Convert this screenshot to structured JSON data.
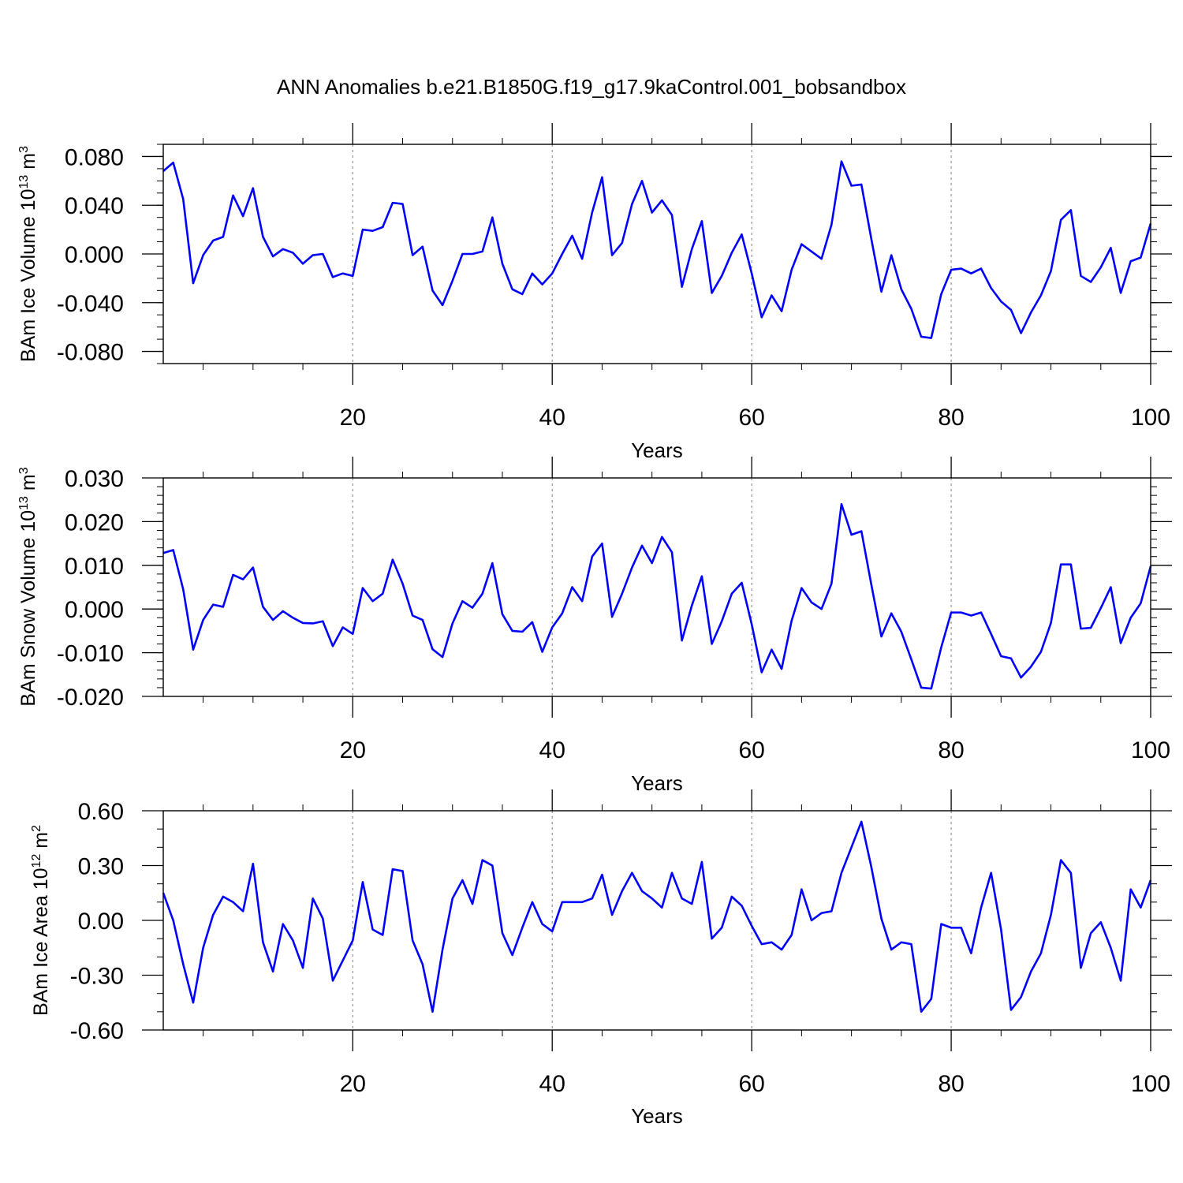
{
  "title": "ANN Anomalies b.e21.B1850G.f19_g17.9kaControl.001_bobsandbox",
  "colors": {
    "series": "#0000ff",
    "axes": "#000000",
    "grid": "#808080"
  },
  "chart_data": [
    {
      "type": "line",
      "ylabel": "BAm Ice Volume 10",
      "ylabel_exp": "13",
      "ylabel_unit": " m",
      "ylabel_unit_exp": "3",
      "xlabel": "Years",
      "xlim": [
        1,
        100
      ],
      "ylim": [
        -0.09,
        0.09
      ],
      "xticks": [
        20,
        40,
        60,
        80,
        100
      ],
      "xtick_labels": [
        "20",
        "40",
        "60",
        "80",
        "100"
      ],
      "yticks": [
        0.08,
        0.04,
        0.0,
        -0.04,
        -0.08
      ],
      "ytick_labels": [
        "0.080",
        "0.040",
        "0.000",
        "-0.040",
        "-0.080"
      ],
      "ylim_minor_step": 0.01,
      "vgrid": [
        20,
        40,
        60,
        80
      ],
      "series": [
        {
          "x_start": 1,
          "values": [
            0.068,
            0.075,
            0.045,
            -0.024,
            -0.001,
            0.011,
            0.014,
            0.048,
            0.031,
            0.054,
            0.014,
            -0.002,
            0.004,
            0.001,
            -0.008,
            -0.001,
            0.0,
            -0.019,
            -0.016,
            -0.018,
            0.02,
            0.019,
            0.022,
            0.042,
            0.041,
            -0.001,
            0.006,
            -0.03,
            -0.042,
            -0.022,
            0.0,
            0.0,
            0.002,
            0.03,
            -0.008,
            -0.029,
            -0.033,
            -0.016,
            -0.025,
            -0.016,
            0.0,
            0.015,
            -0.004,
            0.034,
            0.063,
            -0.001,
            0.009,
            0.041,
            0.06,
            0.034,
            0.044,
            0.032,
            -0.027,
            0.004,
            0.027,
            -0.032,
            -0.018,
            0.001,
            0.016,
            -0.016,
            -0.052,
            -0.034,
            -0.047,
            -0.013,
            0.008,
            0.002,
            -0.004,
            0.024,
            0.076,
            0.056,
            0.057,
            0.012,
            -0.031,
            -0.001,
            -0.029,
            -0.045,
            -0.068,
            -0.069,
            -0.033,
            -0.013,
            -0.012,
            -0.016,
            -0.012,
            -0.028,
            -0.039,
            -0.046,
            -0.065,
            -0.048,
            -0.034,
            -0.014,
            0.028,
            0.036,
            -0.018,
            -0.023,
            -0.011,
            0.005,
            -0.032,
            -0.006,
            -0.003,
            0.025
          ]
        }
      ]
    },
    {
      "type": "line",
      "ylabel": "BAm Snow Volume 10",
      "ylabel_exp": "13",
      "ylabel_unit": " m",
      "ylabel_unit_exp": "3",
      "xlabel": "Years",
      "xlim": [
        1,
        100
      ],
      "ylim": [
        -0.02,
        0.03
      ],
      "xticks": [
        20,
        40,
        60,
        80,
        100
      ],
      "xtick_labels": [
        "20",
        "40",
        "60",
        "80",
        "100"
      ],
      "yticks": [
        0.03,
        0.02,
        0.01,
        0.0,
        -0.01,
        -0.02
      ],
      "ytick_labels": [
        "0.030",
        "0.020",
        "0.010",
        "0.000",
        "-0.010",
        "-0.020"
      ],
      "ylim_minor_step": 0.002,
      "vgrid": [
        20,
        40,
        60,
        80
      ],
      "series": [
        {
          "x_start": 1,
          "values": [
            0.0128,
            0.0135,
            0.0045,
            -0.0093,
            -0.0025,
            0.001,
            0.0005,
            0.0078,
            0.0068,
            0.0095,
            0.0005,
            -0.0025,
            -0.0005,
            -0.002,
            -0.0032,
            -0.0033,
            -0.0028,
            -0.0085,
            -0.0042,
            -0.0057,
            0.0048,
            0.0018,
            0.0035,
            0.0113,
            0.0058,
            -0.0015,
            -0.0025,
            -0.0092,
            -0.011,
            -0.0033,
            0.0018,
            0.0003,
            0.0035,
            0.0105,
            -0.0012,
            -0.005,
            -0.0052,
            -0.003,
            -0.0098,
            -0.0042,
            -0.001,
            0.005,
            0.0018,
            0.012,
            0.015,
            -0.0018,
            0.0035,
            0.0095,
            0.0145,
            0.0105,
            0.0165,
            0.013,
            -0.0072,
            0.0008,
            0.0075,
            -0.008,
            -0.0028,
            0.0035,
            0.006,
            -0.0035,
            -0.0145,
            -0.0093,
            -0.0137,
            -0.0027,
            0.0048,
            0.0015,
            0.0,
            0.0058,
            0.024,
            0.017,
            0.0178,
            0.0055,
            -0.0063,
            -0.001,
            -0.0052,
            -0.0115,
            -0.018,
            -0.0182,
            -0.0088,
            -0.0008,
            -0.0008,
            -0.0015,
            -0.0008,
            -0.0057,
            -0.0108,
            -0.0113,
            -0.0157,
            -0.0132,
            -0.0098,
            -0.0032,
            0.0102,
            0.0102,
            -0.0045,
            -0.0043,
            0.0002,
            0.005,
            -0.0078,
            -0.002,
            0.0013,
            0.0098
          ]
        }
      ]
    },
    {
      "type": "line",
      "ylabel": "BAm Ice Area 10",
      "ylabel_exp": "12",
      "ylabel_unit": " m",
      "ylabel_unit_exp": "2",
      "xlabel": "Years",
      "xlim": [
        1,
        100
      ],
      "ylim": [
        -0.6,
        0.6
      ],
      "xticks": [
        20,
        40,
        60,
        80,
        100
      ],
      "xtick_labels": [
        "20",
        "40",
        "60",
        "80",
        "100"
      ],
      "yticks": [
        0.6,
        0.3,
        0.0,
        -0.3,
        -0.6
      ],
      "ytick_labels": [
        "0.60",
        "0.30",
        "0.00",
        "-0.30",
        "-0.60"
      ],
      "ylim_minor_step": 0.1,
      "vgrid": [
        20,
        40,
        60,
        80
      ],
      "series": [
        {
          "x_start": 1,
          "values": [
            0.15,
            0.0,
            -0.24,
            -0.45,
            -0.15,
            0.03,
            0.13,
            0.1,
            0.05,
            0.31,
            -0.12,
            -0.28,
            -0.02,
            -0.11,
            -0.26,
            0.12,
            0.01,
            -0.33,
            -0.22,
            -0.11,
            0.21,
            -0.05,
            -0.08,
            0.28,
            0.27,
            -0.11,
            -0.24,
            -0.5,
            -0.16,
            0.12,
            0.22,
            0.09,
            0.33,
            0.3,
            -0.07,
            -0.19,
            -0.04,
            0.1,
            -0.02,
            -0.06,
            0.1,
            0.1,
            0.1,
            0.12,
            0.25,
            0.03,
            0.16,
            0.26,
            0.16,
            0.12,
            0.07,
            0.26,
            0.12,
            0.09,
            0.32,
            -0.1,
            -0.04,
            0.13,
            0.08,
            -0.03,
            -0.13,
            -0.12,
            -0.16,
            -0.08,
            0.17,
            0.0,
            0.04,
            0.05,
            0.26,
            0.4,
            0.54,
            0.29,
            0.01,
            -0.16,
            -0.12,
            -0.13,
            -0.5,
            -0.43,
            -0.02,
            -0.04,
            -0.04,
            -0.18,
            0.07,
            0.26,
            -0.05,
            -0.49,
            -0.42,
            -0.28,
            -0.18,
            0.03,
            0.33,
            0.26,
            -0.26,
            -0.07,
            -0.01,
            -0.15,
            -0.33,
            0.17,
            0.07,
            0.22
          ]
        }
      ]
    }
  ]
}
